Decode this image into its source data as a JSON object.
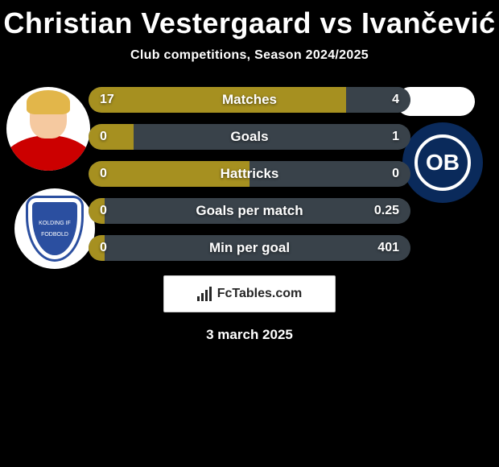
{
  "title": "Christian Vestergaard vs Ivančević",
  "subtitle": "Club competitions, Season 2024/2025",
  "date": "3 march 2025",
  "brand": "FcTables.com",
  "crest_right_label": "OB",
  "crest_left_lines": "KOLDING IF\n\nFODBOLD",
  "colors": {
    "left": "#a69020",
    "right": "#39424a",
    "base": "#404b54",
    "text": "#ffffff"
  },
  "rows": [
    {
      "label": "Matches",
      "left_val": "17",
      "right_val": "4",
      "left_pct": 80,
      "right_pct": 20
    },
    {
      "label": "Goals",
      "left_val": "0",
      "right_val": "1",
      "left_pct": 14,
      "right_pct": 86
    },
    {
      "label": "Hattricks",
      "left_val": "0",
      "right_val": "0",
      "left_pct": 50,
      "right_pct": 50
    },
    {
      "label": "Goals per match",
      "left_val": "0",
      "right_val": "0.25",
      "left_pct": 5,
      "right_pct": 95
    },
    {
      "label": "Min per goal",
      "left_val": "0",
      "right_val": "401",
      "left_pct": 5,
      "right_pct": 95
    }
  ]
}
